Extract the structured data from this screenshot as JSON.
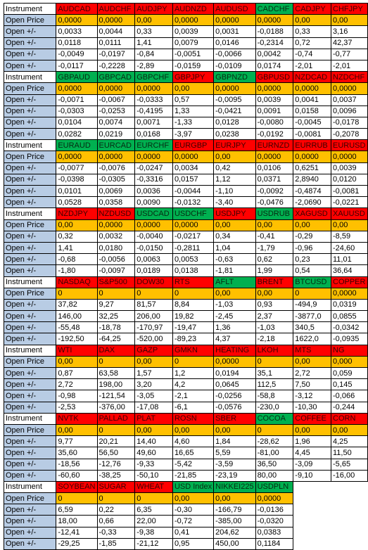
{
  "colors": {
    "label_bg": "#b8cce4",
    "red": "#ff0000",
    "green": "#00b050",
    "open_price_bg": "#ffc000",
    "white": "#ffffff"
  },
  "labels": {
    "instrument": "Instrument",
    "open_price": "Open Price",
    "open_change": "Open +/-"
  },
  "blocks": [
    {
      "instruments": [
        {
          "name": "AUDCAD",
          "color": "red"
        },
        {
          "name": "AUDCHF",
          "color": "red"
        },
        {
          "name": "AUDJPY",
          "color": "red"
        },
        {
          "name": "AUDNZD",
          "color": "red"
        },
        {
          "name": "AUDUSD",
          "color": "red"
        },
        {
          "name": "CADCHF",
          "color": "green"
        },
        {
          "name": "CADJPY",
          "color": "red"
        },
        {
          "name": "CHFJPY",
          "color": "red"
        }
      ],
      "open_price": [
        "0,0000",
        "0,0000",
        "0,00",
        "0,0000",
        "0,0000",
        "0,0000",
        "0,00",
        "0,00"
      ],
      "changes": [
        [
          "0,0033",
          "0,0044",
          "0,33",
          "0,0039",
          "0,0031",
          "-0,0188",
          "0,33",
          "3,16"
        ],
        [
          "0,0118",
          "0,0111",
          "1,41",
          "0,0079",
          "0,0146",
          "-0,2314",
          "0,72",
          "42,37"
        ],
        [
          "-0,0049",
          "-0,0197",
          "-0,84",
          "-0,0051",
          "-0,0066",
          "0,0042",
          "-0,74",
          "-0,77"
        ],
        [
          "-0,0117",
          "-0,2228",
          "-2,89",
          "-0,0159",
          "-0,0109",
          "0,0174",
          "-2,01",
          "-2,01"
        ]
      ]
    },
    {
      "instruments": [
        {
          "name": "GBPAUD",
          "color": "green"
        },
        {
          "name": "GBPCAD",
          "color": "green"
        },
        {
          "name": "GBPCHF",
          "color": "green"
        },
        {
          "name": "GBPJPY",
          "color": "red"
        },
        {
          "name": "GBPNZD",
          "color": "green"
        },
        {
          "name": "GBPUSD",
          "color": "red"
        },
        {
          "name": "NZDCAD",
          "color": "red"
        },
        {
          "name": "NZDCHF",
          "color": "red"
        }
      ],
      "open_price": [
        "0,0000",
        "0,0000",
        "0,0000",
        "0,00",
        "0,0000",
        "0,0000",
        "0,0000",
        "0,0000"
      ],
      "changes": [
        [
          "-0,0071",
          "-0,0067",
          "-0,0333",
          "0,57",
          "-0,0095",
          "0,0039",
          "0,0041",
          "0,0037"
        ],
        [
          "-0,0303",
          "-0,0253",
          "-0,4195",
          "1,33",
          "-0,0421",
          "0,0091",
          "0,0158",
          "0,0096"
        ],
        [
          "0,0104",
          "0,0074",
          "0,0071",
          "-1,33",
          "0,0128",
          "-0,0080",
          "-0,0045",
          "-0,0178"
        ],
        [
          "0,0282",
          "0,0219",
          "0,0168",
          "-3,97",
          "0,0238",
          "-0,0192",
          "-0,0081",
          "-0,2078"
        ]
      ]
    },
    {
      "instruments": [
        {
          "name": "EURAUD",
          "color": "green"
        },
        {
          "name": "EURCAD",
          "color": "green"
        },
        {
          "name": "EURCHF",
          "color": "green"
        },
        {
          "name": "EURGBP",
          "color": "red"
        },
        {
          "name": "EURJPY",
          "color": "red"
        },
        {
          "name": "EURNZD",
          "color": "red"
        },
        {
          "name": "EURRUB",
          "color": "red"
        },
        {
          "name": "EURUSD",
          "color": "red"
        }
      ],
      "open_price": [
        "0,0000",
        "0,0000",
        "0,0000",
        "0,0000",
        "0,00",
        "0,0000",
        "0,0000",
        "0,0000"
      ],
      "changes": [
        [
          "-0,0077",
          "-0,0076",
          "-0,0247",
          "0,0034",
          "0,42",
          "0,0106",
          "0,6251",
          "0,0039"
        ],
        [
          "-0,0398",
          "-0,0305",
          "-0,3316",
          "0,0157",
          "1,12",
          "0,0371",
          "2,8940",
          "0,0120"
        ],
        [
          "0,0101",
          "0,0069",
          "0,0036",
          "-0,0044",
          "-1,10",
          "-0,0092",
          "-0,4874",
          "-0,0081"
        ],
        [
          "0,0528",
          "0,0358",
          "0,0090",
          "-0,0132",
          "-3,40",
          "-0,0476",
          "-2,0690",
          "-0,0221"
        ]
      ]
    },
    {
      "instruments": [
        {
          "name": "NZDJPY",
          "color": "red"
        },
        {
          "name": "NZDUSD",
          "color": "red"
        },
        {
          "name": "USDCAD",
          "color": "green"
        },
        {
          "name": "USDCHF",
          "color": "green"
        },
        {
          "name": "USDJPY",
          "color": "red"
        },
        {
          "name": "USDRUB",
          "color": "green"
        },
        {
          "name": "XAGUSD",
          "color": "red"
        },
        {
          "name": "XAUUSD",
          "color": "red"
        }
      ],
      "open_price": [
        "0,00",
        "0,0000",
        "0,0000",
        "0,0000",
        "0,00",
        "0,00",
        "0,00",
        "0,00"
      ],
      "changes": [
        [
          "0,32",
          "0,0032",
          "-0,0040",
          "-0,0217",
          "0,34",
          "-0,41",
          "-0,29",
          "-8,59"
        ],
        [
          "1,41",
          "0,0180",
          "-0,0150",
          "-0,2811",
          "1,04",
          "-1,79",
          "-0,96",
          "-24,60"
        ],
        [
          "-0,68",
          "-0,0056",
          "0,0063",
          "0,0053",
          "-0,63",
          "0,62",
          "0,23",
          "11,01"
        ],
        [
          "-1,80",
          "-0,0097",
          "0,0189",
          "0,0138",
          "-1,81",
          "1,99",
          "0,54",
          "36,64"
        ]
      ]
    },
    {
      "instruments": [
        {
          "name": "NASDAQ",
          "color": "red"
        },
        {
          "name": "S&P500",
          "color": "red"
        },
        {
          "name": "DOW30",
          "color": "red"
        },
        {
          "name": "RTS",
          "color": "red"
        },
        {
          "name": "AFLT",
          "color": "green"
        },
        {
          "name": "BRENT",
          "color": "red"
        },
        {
          "name": "BTCUSD",
          "color": "green"
        },
        {
          "name": "COPPER",
          "color": "red"
        }
      ],
      "open_price": [
        "0",
        "0",
        "0",
        "0",
        "0,00",
        "0,00",
        "0",
        "0,0000"
      ],
      "changes": [
        [
          "37,82",
          "9,27",
          "81,57",
          "8,84",
          "-1,03",
          "0,93",
          "-494,9",
          "0,0319"
        ],
        [
          "146,00",
          "32,25",
          "206,00",
          "19,82",
          "-2,45",
          "2,37",
          "-3877,0",
          "0,0855"
        ],
        [
          "-55,48",
          "-18,78",
          "-170,97",
          "-19,47",
          "1,36",
          "-1,03",
          "340,5",
          "-0,0342"
        ],
        [
          "-192,50",
          "-64,25",
          "-520,00",
          "-89,23",
          "4,37",
          "-2,18",
          "1622,0",
          "-0,0935"
        ]
      ]
    },
    {
      "instruments": [
        {
          "name": "WTI",
          "color": "red"
        },
        {
          "name": "DAX",
          "color": "red"
        },
        {
          "name": "GAZP",
          "color": "red"
        },
        {
          "name": "GMKN",
          "color": "red"
        },
        {
          "name": "HEATING",
          "color": "red"
        },
        {
          "name": "LKOH",
          "color": "red"
        },
        {
          "name": "MTS",
          "color": "red"
        },
        {
          "name": "NG",
          "color": "red"
        }
      ],
      "open_price": [
        "0,00",
        "0",
        "0,00",
        "0",
        "0,0000",
        "0",
        "0,00",
        "0,000"
      ],
      "changes": [
        [
          "0,87",
          "63,58",
          "1,57",
          "1,2",
          "0,0194",
          "35,1",
          "2,72",
          "0,059"
        ],
        [
          "2,72",
          "198,00",
          "3,20",
          "4,2",
          "0,0645",
          "112,5",
          "7,50",
          "0,145"
        ],
        [
          "-0,98",
          "-121,54",
          "-3,05",
          "-2,1",
          "-0,0256",
          "-58,8",
          "-3,12",
          "-0,066"
        ],
        [
          "-2,53",
          "-376,00",
          "-17,08",
          "-6,1",
          "-0,0576",
          "-230,0",
          "-10,30",
          "-0,244"
        ]
      ]
    },
    {
      "instruments": [
        {
          "name": "NVTK",
          "color": "red"
        },
        {
          "name": "PALLAD",
          "color": "red"
        },
        {
          "name": "PLAT",
          "color": "red"
        },
        {
          "name": "ROSN",
          "color": "red"
        },
        {
          "name": "SBER",
          "color": "red"
        },
        {
          "name": "COCOA",
          "color": "green"
        },
        {
          "name": "COFFEE",
          "color": "red"
        },
        {
          "name": "CORN",
          "color": "red"
        }
      ],
      "open_price": [
        "0,00",
        "0",
        "0,00",
        "0,00",
        "0,00",
        "0",
        "0,00",
        "0,00"
      ],
      "changes": [
        [
          "9,77",
          "20,21",
          "14,40",
          "4,60",
          "1,84",
          "-28,62",
          "1,96",
          "4,25"
        ],
        [
          "35,60",
          "56,50",
          "49,60",
          "16,65",
          "5,59",
          "-81,00",
          "4,45",
          "11,50"
        ],
        [
          "-18,56",
          "-12,76",
          "-9,33",
          "-5,42",
          "-3,59",
          "36,50",
          "-3,09",
          "-5,65"
        ],
        [
          "-60,60",
          "-38,25",
          "-50,10",
          "-21,85",
          "-23,19",
          "80,00",
          "-9,10",
          "-16,00"
        ]
      ]
    },
    {
      "instruments": [
        {
          "name": "SOYBEAN",
          "color": "red"
        },
        {
          "name": "SUGAR",
          "color": "red"
        },
        {
          "name": "WHEAT",
          "color": "red"
        },
        {
          "name": "USD Index",
          "color": "green"
        },
        {
          "name": "NIKKEI225",
          "color": "green"
        },
        {
          "name": "USDPLN",
          "color": "green"
        }
      ],
      "open_price": [
        "0",
        "0",
        "0",
        "0,00",
        "0,00",
        "0,0000"
      ],
      "changes": [
        [
          "6,59",
          "0,22",
          "6,35",
          "-0,30",
          "-166,79",
          "-0,0136"
        ],
        [
          "18,00",
          "0,66",
          "22,00",
          "-0,72",
          "-385,00",
          "-0,0320"
        ],
        [
          "-12,41",
          "-0,33",
          "-9,38",
          "0,41",
          "204,62",
          "0,0383"
        ],
        [
          "-29,25",
          "-1,85",
          "-21,12",
          "0,95",
          "450,00",
          "0,1184"
        ]
      ]
    }
  ]
}
